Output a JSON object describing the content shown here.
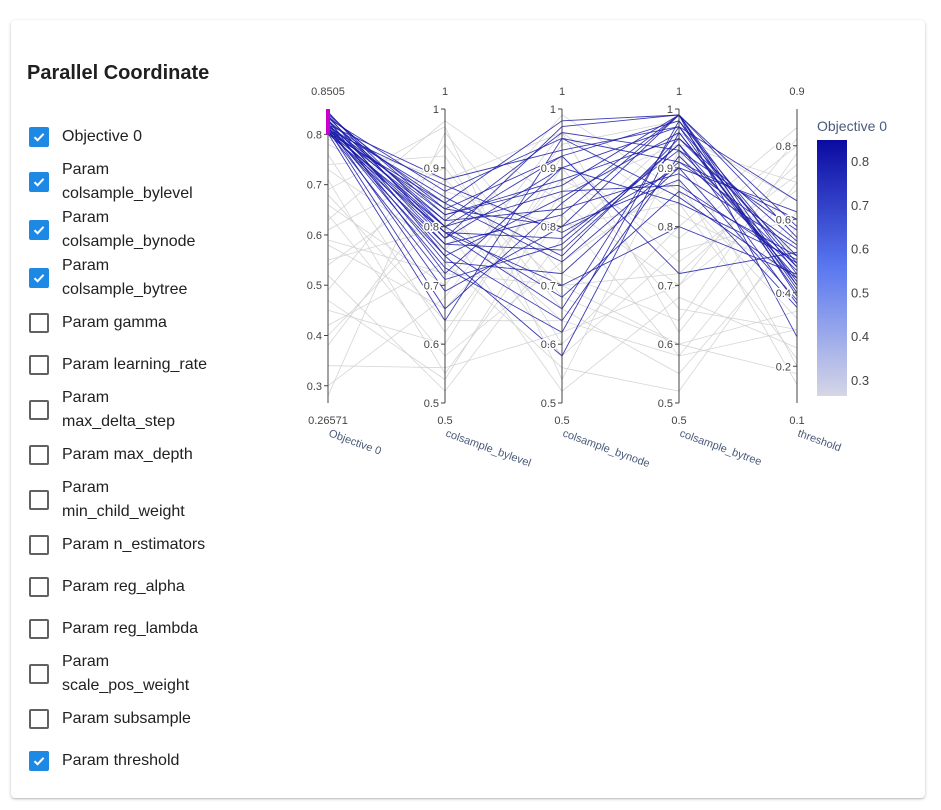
{
  "title": "Parallel Coordinate",
  "params": [
    {
      "id": "objective_0",
      "label_lines": [
        "Objective 0"
      ],
      "checked": true
    },
    {
      "id": "colsample_bylevel",
      "label_lines": [
        "Param",
        "colsample_bylevel"
      ],
      "checked": true
    },
    {
      "id": "colsample_bynode",
      "label_lines": [
        "Param",
        "colsample_bynode"
      ],
      "checked": true
    },
    {
      "id": "colsample_bytree",
      "label_lines": [
        "Param",
        "colsample_bytree"
      ],
      "checked": true
    },
    {
      "id": "gamma",
      "label_lines": [
        "Param gamma"
      ],
      "checked": false
    },
    {
      "id": "learning_rate",
      "label_lines": [
        "Param learning_rate"
      ],
      "checked": false
    },
    {
      "id": "max_delta_step",
      "label_lines": [
        "Param",
        "max_delta_step"
      ],
      "checked": false
    },
    {
      "id": "max_depth",
      "label_lines": [
        "Param max_depth"
      ],
      "checked": false
    },
    {
      "id": "min_child_weight",
      "label_lines": [
        "Param",
        "min_child_weight"
      ],
      "checked": false
    },
    {
      "id": "n_estimators",
      "label_lines": [
        "Param n_estimators"
      ],
      "checked": false
    },
    {
      "id": "reg_alpha",
      "label_lines": [
        "Param reg_alpha"
      ],
      "checked": false
    },
    {
      "id": "reg_lambda",
      "label_lines": [
        "Param reg_lambda"
      ],
      "checked": false
    },
    {
      "id": "scale_pos_weight",
      "label_lines": [
        "Param",
        "scale_pos_weight"
      ],
      "checked": false
    },
    {
      "id": "subsample",
      "label_lines": [
        "Param subsample"
      ],
      "checked": false
    },
    {
      "id": "threshold",
      "label_lines": [
        "Param threshold"
      ],
      "checked": true
    }
  ],
  "colors": {
    "accent": "#1e88e5",
    "line_highlight": "#1a1aa8",
    "line_muted": "#d0d0d0",
    "constraint_bar": "#cc00cc",
    "colorscale_low": "#d6d6e6",
    "colorscale_mid": "#5a78f0",
    "colorscale_high": "#0a0aa0"
  },
  "chart_data": {
    "type": "parallel_coordinates",
    "color_dimension": "Objective 0",
    "colorbar": {
      "title": "Objective 0",
      "range": [
        0.26571,
        0.8505
      ],
      "ticks": [
        "0.8",
        "0.7",
        "0.6",
        "0.5",
        "0.4",
        "0.3"
      ]
    },
    "constraint": {
      "dimension": "Objective 0",
      "range": [
        0.8,
        0.8505
      ]
    },
    "dimensions": [
      {
        "label": "Objective 0",
        "range": [
          0.26571,
          0.8505
        ],
        "max_label": "0.8505",
        "min_label": "0.26571",
        "ticks": [
          "0.8",
          "0.7",
          "0.6",
          "0.5",
          "0.4",
          "0.3"
        ]
      },
      {
        "label": "colsample_bylevel",
        "range": [
          0.5,
          1
        ],
        "max_label": "1",
        "min_label": "0.5",
        "ticks": [
          "1",
          "0.9",
          "0.8",
          "0.7",
          "0.6",
          "0.5"
        ]
      },
      {
        "label": "colsample_bynode",
        "range": [
          0.5,
          1
        ],
        "max_label": "1",
        "min_label": "0.5",
        "ticks": [
          "1",
          "0.9",
          "0.8",
          "0.7",
          "0.6",
          "0.5"
        ]
      },
      {
        "label": "colsample_bytree",
        "range": [
          0.5,
          1
        ],
        "max_label": "1",
        "min_label": "0.5",
        "ticks": [
          "1",
          "0.9",
          "0.8",
          "0.7",
          "0.6",
          "0.5"
        ]
      },
      {
        "label": "threshold",
        "range": [
          0.1,
          0.9
        ],
        "max_label": "0.9",
        "min_label": "0.1",
        "ticks": [
          "0.8",
          "0.6",
          "0.4",
          "0.2"
        ]
      }
    ],
    "highlighted_trials": [
      [
        0.845,
        0.78,
        0.97,
        0.99,
        0.45
      ],
      [
        0.843,
        0.8,
        0.92,
        0.98,
        0.48
      ],
      [
        0.84,
        0.82,
        0.88,
        0.95,
        0.5
      ],
      [
        0.838,
        0.75,
        0.85,
        0.96,
        0.42
      ],
      [
        0.836,
        0.83,
        0.8,
        0.99,
        0.55
      ],
      [
        0.834,
        0.79,
        0.78,
        0.93,
        0.47
      ],
      [
        0.832,
        0.86,
        0.95,
        0.91,
        0.6
      ],
      [
        0.83,
        0.72,
        0.9,
        0.97,
        0.4
      ],
      [
        0.828,
        0.81,
        0.83,
        0.89,
        0.52
      ],
      [
        0.826,
        0.77,
        0.76,
        0.94,
        0.44
      ],
      [
        0.824,
        0.84,
        0.98,
        0.99,
        0.58
      ],
      [
        0.822,
        0.74,
        0.72,
        0.9,
        0.38
      ],
      [
        0.82,
        0.8,
        0.68,
        0.86,
        0.5
      ],
      [
        0.819,
        0.88,
        0.93,
        0.97,
        0.65
      ],
      [
        0.818,
        0.76,
        0.64,
        0.92,
        0.46
      ],
      [
        0.817,
        0.82,
        0.87,
        0.99,
        0.42
      ],
      [
        0.816,
        0.69,
        0.8,
        0.88,
        0.36
      ],
      [
        0.815,
        0.85,
        0.75,
        0.95,
        0.54
      ],
      [
        0.814,
        0.78,
        0.9,
        0.84,
        0.49
      ],
      [
        0.813,
        0.73,
        0.62,
        0.98,
        0.41
      ],
      [
        0.812,
        0.81,
        0.96,
        0.93,
        0.57
      ],
      [
        0.811,
        0.79,
        0.7,
        0.8,
        0.45
      ],
      [
        0.81,
        0.66,
        0.84,
        0.99,
        0.39
      ],
      [
        0.809,
        0.87,
        0.79,
        0.9,
        0.62
      ],
      [
        0.808,
        0.75,
        0.58,
        0.96,
        0.43
      ],
      [
        0.807,
        0.83,
        0.92,
        0.72,
        0.51
      ],
      [
        0.806,
        0.71,
        0.77,
        0.94,
        0.37
      ],
      [
        0.805,
        0.8,
        0.86,
        0.87,
        0.48
      ],
      [
        0.804,
        0.77,
        0.82,
        0.99,
        0.28
      ],
      [
        0.803,
        0.84,
        0.74,
        0.91,
        0.53
      ],
      [
        0.802,
        0.64,
        0.95,
        0.85,
        0.44
      ],
      [
        0.801,
        0.79,
        0.66,
        0.97,
        0.47
      ]
    ],
    "other_trials": [
      [
        0.79,
        0.88,
        0.7,
        0.72,
        0.75
      ],
      [
        0.76,
        0.62,
        0.9,
        0.66,
        0.3
      ],
      [
        0.74,
        0.92,
        0.6,
        0.8,
        0.85
      ],
      [
        0.71,
        0.55,
        0.82,
        0.58,
        0.62
      ],
      [
        0.69,
        0.97,
        0.54,
        0.93,
        0.2
      ],
      [
        0.66,
        0.7,
        0.96,
        0.62,
        0.7
      ],
      [
        0.64,
        0.58,
        0.74,
        0.88,
        0.15
      ],
      [
        0.61,
        0.9,
        0.66,
        0.55,
        0.55
      ],
      [
        0.58,
        0.66,
        0.88,
        0.78,
        0.8
      ],
      [
        0.55,
        0.8,
        0.52,
        0.68,
        0.25
      ],
      [
        0.52,
        0.52,
        0.78,
        0.96,
        0.65
      ],
      [
        0.49,
        0.94,
        0.68,
        0.6,
        0.35
      ],
      [
        0.45,
        0.6,
        0.92,
        0.74,
        0.72
      ],
      [
        0.42,
        0.74,
        0.56,
        0.52,
        0.58
      ],
      [
        0.38,
        0.86,
        0.8,
        0.84,
        0.22
      ],
      [
        0.34,
        0.56,
        0.62,
        0.7,
        0.68
      ],
      [
        0.3,
        0.68,
        0.94,
        0.98,
        0.4
      ],
      [
        0.28,
        0.96,
        0.72,
        0.64,
        0.78
      ],
      [
        0.78,
        0.84,
        0.58,
        0.76,
        0.6
      ],
      [
        0.73,
        0.76,
        0.99,
        0.86,
        0.33
      ],
      [
        0.68,
        0.64,
        0.64,
        0.92,
        0.5
      ],
      [
        0.63,
        0.98,
        0.84,
        0.7,
        0.82
      ],
      [
        0.59,
        0.72,
        0.7,
        0.6,
        0.18
      ],
      [
        0.54,
        0.88,
        0.96,
        0.82,
        0.45
      ],
      [
        0.47,
        0.54,
        0.86,
        0.94,
        0.7
      ],
      [
        0.4,
        0.82,
        0.64,
        0.58,
        0.3
      ]
    ]
  }
}
